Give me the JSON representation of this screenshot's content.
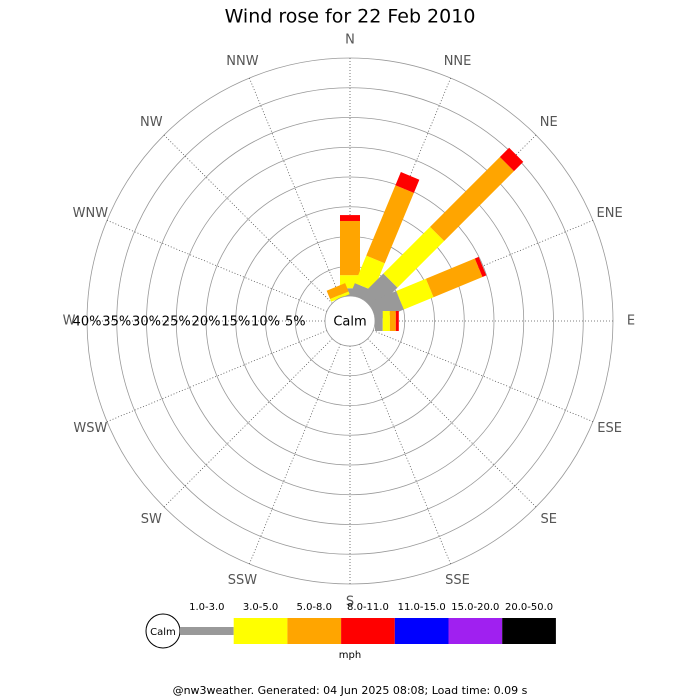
{
  "chart_data": {
    "type": "windrose",
    "title": "Wind rose for 22 Feb 2010",
    "directions": [
      "N",
      "NNE",
      "NE",
      "ENE",
      "E",
      "ESE",
      "SE",
      "SSE",
      "S",
      "SSW",
      "SW",
      "WSW",
      "W",
      "WNW",
      "NW",
      "NNW"
    ],
    "center_label": "Calm",
    "units_label": "mph",
    "footer": "@nw3weather. Generated: 04 Jun 2025 08:08; Load time: 0.09 s",
    "ylim": [
      0,
      40
    ],
    "yticks": [
      {
        "value": 5,
        "label": "5%"
      },
      {
        "value": 10,
        "label": "10%"
      },
      {
        "value": 15,
        "label": "15%"
      },
      {
        "value": 20,
        "label": "20%"
      },
      {
        "value": 25,
        "label": "25%"
      },
      {
        "value": 30,
        "label": "30%"
      },
      {
        "value": 35,
        "label": "35%"
      },
      {
        "value": 40,
        "label": "40%"
      }
    ],
    "series": [
      {
        "name": "1.0-3.0",
        "color": "#999999",
        "values": [
          1.3,
          2.0,
          5.4,
          4.9,
          1.3,
          0,
          0,
          0,
          0,
          0,
          0,
          0,
          0,
          0,
          0,
          0
        ]
      },
      {
        "name": "3.0-5.0",
        "color": "#ffff00",
        "values": [
          2.2,
          5.0,
          11.1,
          5.4,
          1.2,
          0,
          0,
          0,
          0,
          0,
          0,
          0,
          0,
          0,
          0,
          0.5
        ]
      },
      {
        "name": "5.0-8.0",
        "color": "#ffa500",
        "values": [
          9.1,
          12.8,
          16.6,
          8.9,
          1.0,
          0,
          0,
          0,
          0,
          0,
          0,
          0,
          0,
          0,
          0,
          1.5
        ]
      },
      {
        "name": "8.0-11.0",
        "color": "#ff0000",
        "values": [
          1.0,
          2.4,
          2.2,
          0.7,
          0.5,
          0,
          0,
          0,
          0,
          0,
          0,
          0,
          0,
          0,
          0,
          0
        ]
      },
      {
        "name": "11.0-15.0",
        "color": "#0000ff",
        "values": [
          0,
          0,
          0,
          0,
          0,
          0,
          0,
          0,
          0,
          0,
          0,
          0,
          0,
          0,
          0,
          0
        ]
      },
      {
        "name": "15.0-20.0",
        "color": "#a020f0",
        "values": [
          0,
          0,
          0,
          0,
          0,
          0,
          0,
          0,
          0,
          0,
          0,
          0,
          0,
          0,
          0,
          0
        ]
      },
      {
        "name": "20.0-50.0",
        "color": "#000000",
        "values": [
          0,
          0,
          0,
          0,
          0,
          0,
          0,
          0,
          0,
          0,
          0,
          0,
          0,
          0,
          0,
          0
        ]
      }
    ]
  }
}
